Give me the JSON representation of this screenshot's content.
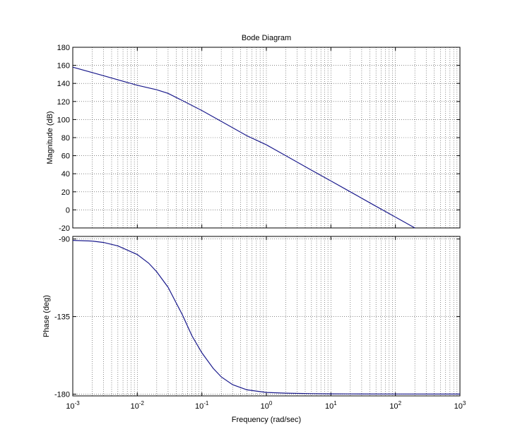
{
  "chart_data": {
    "type": "line",
    "title": "Bode Diagram",
    "xlabel": "Frequency  (rad/sec)",
    "xscale": "log",
    "xlim": [
      0.001,
      1000
    ],
    "x_ticks": [
      {
        "base": "10",
        "exp": "-3",
        "value": 0.001
      },
      {
        "base": "10",
        "exp": "-2",
        "value": 0.01
      },
      {
        "base": "10",
        "exp": "-1",
        "value": 0.1
      },
      {
        "base": "10",
        "exp": "0",
        "value": 1
      },
      {
        "base": "10",
        "exp": "1",
        "value": 10
      },
      {
        "base": "10",
        "exp": "2",
        "value": 100
      },
      {
        "base": "10",
        "exp": "3",
        "value": 1000
      }
    ],
    "grid": true,
    "line_color": "#1a1a8c",
    "panels": [
      {
        "ylabel": "Magnitude (dB)",
        "ylim": [
          -20,
          180
        ],
        "yticks": [
          "-20",
          "0",
          "20",
          "40",
          "60",
          "80",
          "100",
          "120",
          "140",
          "160",
          "180"
        ],
        "series": [
          {
            "x": [
              0.001,
              0.002,
              0.003,
              0.005,
              0.01,
              0.02,
              0.03,
              0.05,
              0.1,
              0.2,
              0.5,
              1,
              2,
              5,
              10,
              20,
              50,
              100,
              200,
              233
            ],
            "y": [
              158,
              152,
              148.5,
              144,
              138,
              133,
              129,
              121,
              110,
              98,
              82,
              72,
              60,
              44,
              32,
              20,
              4,
              -8,
              -20,
              -21
            ]
          }
        ]
      },
      {
        "ylabel": "Phase (deg)",
        "ylim": [
          -181,
          -88.5
        ],
        "yticks": [
          "-180",
          "-135",
          "-90"
        ],
        "series": [
          {
            "x": [
              0.001,
              0.002,
              0.003,
              0.005,
              0.01,
              0.015,
              0.02,
              0.03,
              0.04,
              0.05,
              0.07,
              0.1,
              0.15,
              0.2,
              0.3,
              0.5,
              1,
              2,
              5,
              10,
              20,
              100,
              1000
            ],
            "y": [
              -90.8,
              -91.2,
              -92,
              -94,
              -99,
              -104,
              -109,
              -118,
              -127,
              -134,
              -146,
              -156,
              -165,
              -170,
              -174.5,
              -177.5,
              -179,
              -179.4,
              -179.7,
              -179.8,
              -179.85,
              -179.9,
              -179.95
            ]
          }
        ]
      }
    ]
  }
}
